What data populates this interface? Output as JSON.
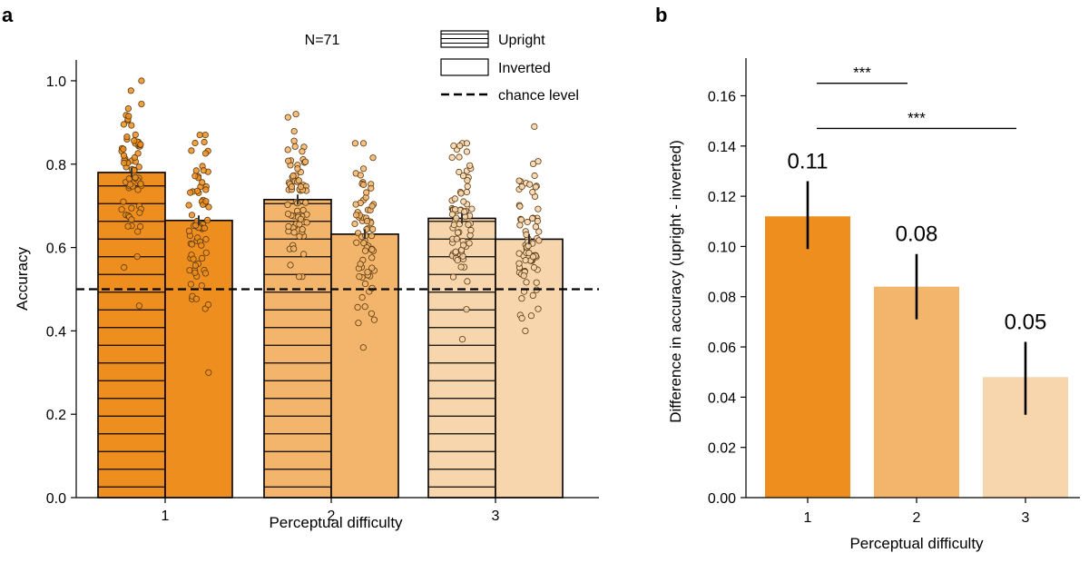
{
  "chart_data": [
    {
      "panel": "a",
      "type": "bar",
      "annotation": "N=71",
      "xlabel": "Perceptual difficulty",
      "ylabel": "Accuracy",
      "ylim": [
        0,
        1.05
      ],
      "yticks": [
        "0.0",
        "0.2",
        "0.4",
        "0.6",
        "0.8",
        "1.0"
      ],
      "categories": [
        "1",
        "2",
        "3"
      ],
      "colors": [
        "#EE8E1E",
        "#F3B56C",
        "#F7D6AE"
      ],
      "series": [
        {
          "name": "Upright",
          "hatch": "horizontal",
          "values": [
            0.78,
            0.715,
            0.67
          ],
          "errors": [
            0.012,
            0.012,
            0.012
          ]
        },
        {
          "name": "Inverted",
          "hatch": "none",
          "values": [
            0.665,
            0.632,
            0.62
          ],
          "errors": [
            0.012,
            0.012,
            0.012
          ]
        }
      ],
      "chance_level": 0.5,
      "legend": [
        {
          "label": "Upright",
          "style": "hatched"
        },
        {
          "label": "Inverted",
          "style": "plain"
        },
        {
          "label": "chance level",
          "style": "dashed"
        }
      ],
      "legend_position": "top-right",
      "points_per_bar": 71,
      "point_ranges": [
        [
          0.46,
          1.0
        ],
        [
          0.3,
          0.87
        ],
        [
          0.53,
          0.92
        ],
        [
          0.36,
          0.85
        ],
        [
          0.38,
          0.85
        ],
        [
          0.4,
          0.89
        ]
      ]
    },
    {
      "panel": "b",
      "type": "bar",
      "xlabel": "Perceptual difficulty",
      "ylabel": "Difference in accuracy (upright - inverted)",
      "ylim": [
        0,
        0.175
      ],
      "yticks": [
        "0.00",
        "0.02",
        "0.04",
        "0.06",
        "0.08",
        "0.10",
        "0.12",
        "0.14",
        "0.16"
      ],
      "categories": [
        "1",
        "2",
        "3"
      ],
      "colors": [
        "#EE8E1E",
        "#F3B56C",
        "#F7D6AE"
      ],
      "values": [
        0.112,
        0.084,
        0.048
      ],
      "error_low": [
        0.099,
        0.071,
        0.033
      ],
      "error_high": [
        0.126,
        0.097,
        0.062
      ],
      "value_labels": [
        "0.11",
        "0.08",
        "0.05"
      ],
      "significance": [
        {
          "from": "1",
          "to": "2",
          "label": "***",
          "y": 0.165
        },
        {
          "from": "1",
          "to": "3",
          "label": "***",
          "y": 0.147
        }
      ]
    }
  ]
}
